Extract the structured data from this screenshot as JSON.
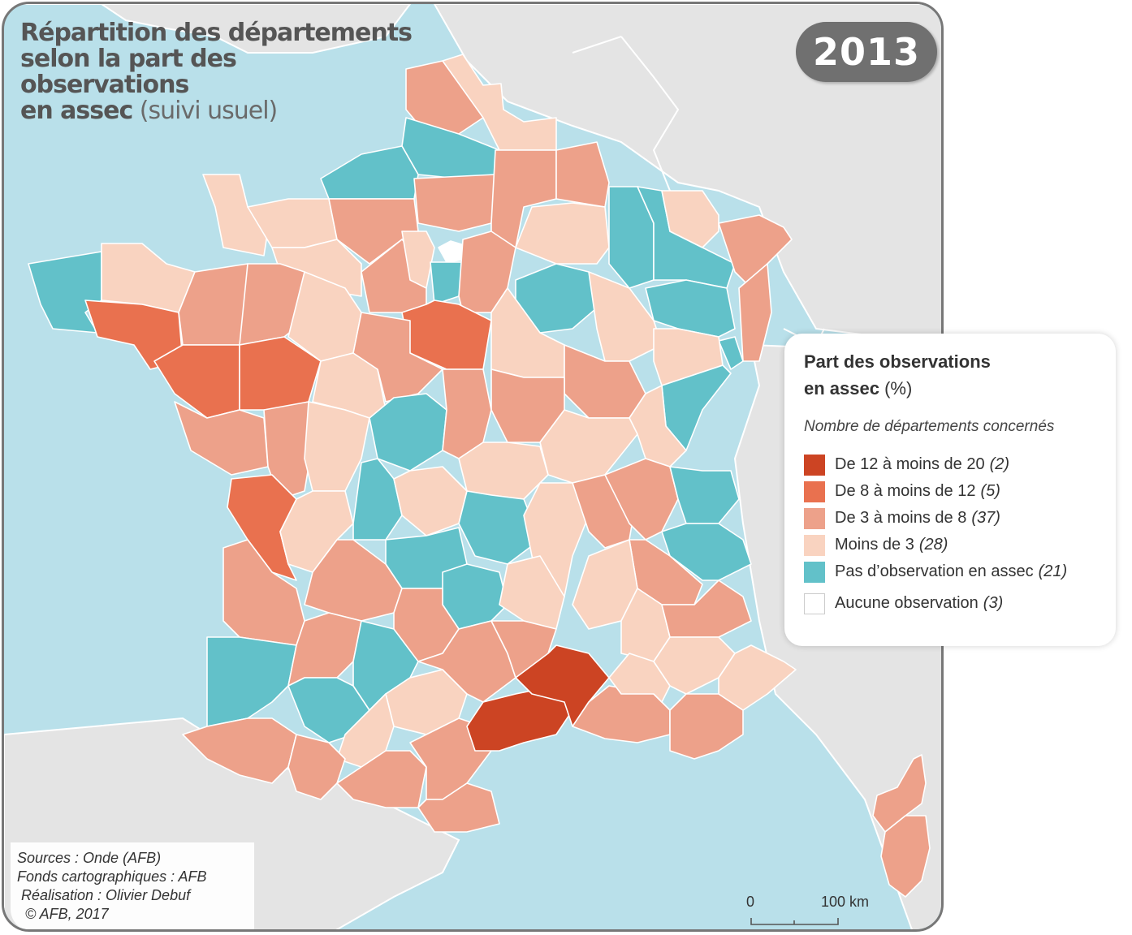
{
  "title": {
    "line1": "Répartition des départements",
    "line2": "selon la part des",
    "line3": "observations",
    "line4_bold": "en assec",
    "line4_light": "(suivi usuel)"
  },
  "year": "2013",
  "legend": {
    "title_bold_1": "Part des observations",
    "title_bold_2": "en assec",
    "title_unit": "(%)",
    "subtitle": "Nombre de départements concernés",
    "classes": [
      {
        "label": "De 12 à moins de 20",
        "count": "(2)",
        "color": "#cc4423"
      },
      {
        "label": "De 8 à moins de 12",
        "count": "(5)",
        "color": "#e9714f"
      },
      {
        "label": "De 3 à moins de 8",
        "count": "(37)",
        "color": "#eda18a"
      },
      {
        "label": "Moins de 3",
        "count": "(28)",
        "color": "#f9d3c0"
      },
      {
        "label": "Pas d’observation en assec",
        "count": "(21)",
        "color": "#62c1c9"
      },
      {
        "label": "Aucune observation",
        "count": "(3)",
        "color": "#ffffff"
      }
    ]
  },
  "credits": {
    "line1": "Sources : Onde (AFB)",
    "line2": "Fonds cartographiques : AFB",
    "line3": " Réalisation : Olivier Debuf",
    "line4": "  © AFB, 2017"
  },
  "scale": {
    "start": "0",
    "end": "100 km"
  },
  "colors": {
    "sea": "#b9e0ea",
    "neighbor_land": "#e4e4e4",
    "frame": "#777777"
  }
}
